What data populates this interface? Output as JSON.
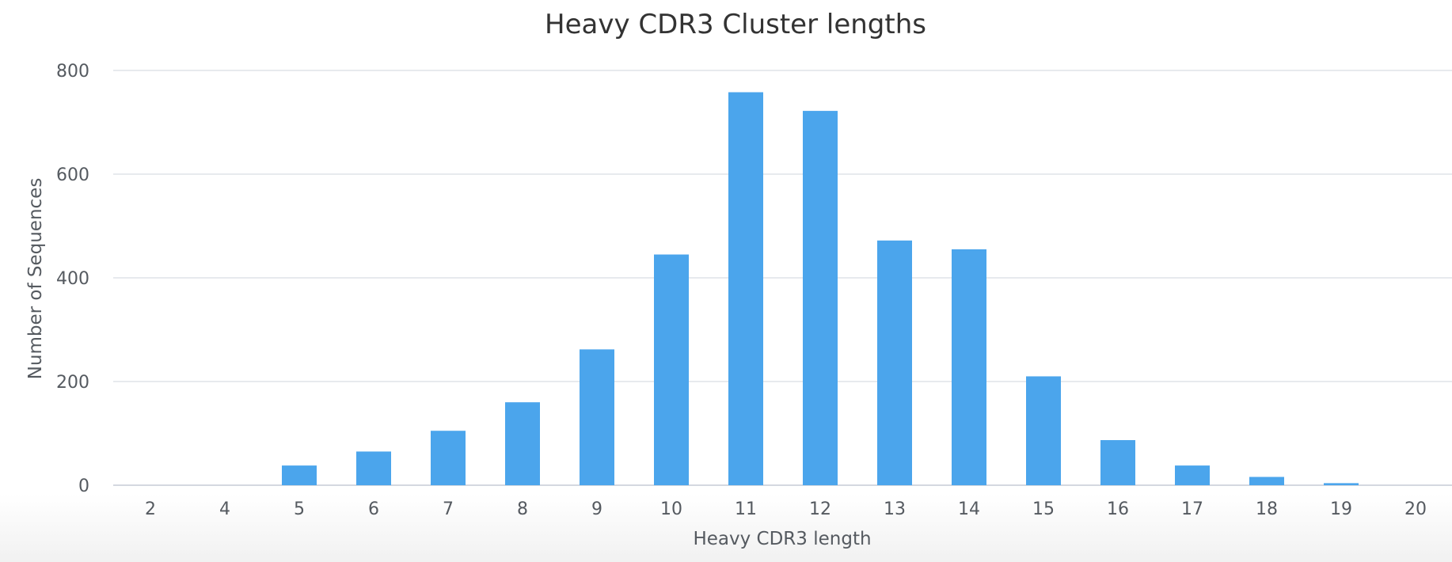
{
  "chart_data": {
    "type": "bar",
    "title": "Heavy CDR3 Cluster lengths",
    "xlabel": "Heavy CDR3 length",
    "ylabel": "Number of Sequences",
    "categories": [
      "2",
      "4",
      "5",
      "6",
      "7",
      "8",
      "9",
      "10",
      "11",
      "12",
      "13",
      "14",
      "15",
      "16",
      "17",
      "18",
      "19",
      "20"
    ],
    "values": [
      0,
      0,
      38,
      65,
      105,
      160,
      262,
      445,
      758,
      722,
      472,
      455,
      210,
      87,
      38,
      16,
      4,
      0
    ],
    "ylim": [
      0,
      800
    ],
    "yticks": [
      "0",
      "200",
      "400",
      "600",
      "800"
    ],
    "ytick_values": [
      0,
      200,
      400,
      600,
      800
    ],
    "grid": true,
    "legend": "none",
    "bar_color": "#4ba5ec"
  }
}
